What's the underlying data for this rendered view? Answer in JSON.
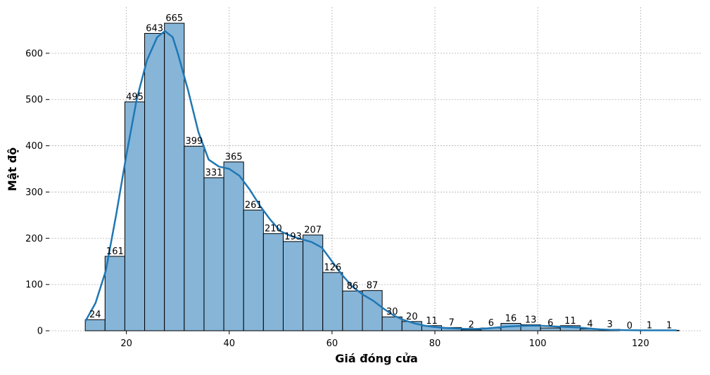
{
  "chart_data": {
    "type": "bar",
    "subtype": "histogram_with_kde",
    "xlabel": "Giá đóng cửa",
    "ylabel": "Mật độ",
    "bin_start": 12.0,
    "bin_width": 3.85,
    "values": [
      24,
      161,
      495,
      643,
      665,
      399,
      331,
      365,
      261,
      210,
      193,
      207,
      126,
      86,
      87,
      30,
      20,
      11,
      7,
      2,
      6,
      16,
      13,
      6,
      11,
      4,
      3,
      0,
      1,
      1
    ],
    "xlim": [
      5,
      132
    ],
    "ylim": [
      0,
      700
    ],
    "xticks": [
      20,
      40,
      60,
      80,
      100,
      120
    ],
    "yticks": [
      0,
      100,
      200,
      300,
      400,
      500,
      600
    ],
    "kde": {
      "x": [
        12,
        14,
        16,
        18,
        20,
        22,
        24,
        26,
        27.5,
        29,
        30,
        31,
        32,
        34,
        36,
        38,
        40,
        42,
        44,
        46,
        48,
        50,
        52,
        54,
        56,
        58,
        60,
        62,
        64,
        66,
        68,
        70,
        72,
        74,
        76,
        78,
        80,
        82,
        84,
        86,
        88,
        90,
        92,
        94,
        96,
        98,
        100,
        102,
        104,
        106,
        108,
        110,
        112,
        114,
        116,
        120,
        124,
        127
      ],
      "y": [
        20,
        60,
        130,
        250,
        380,
        500,
        585,
        635,
        648,
        635,
        600,
        560,
        520,
        430,
        370,
        355,
        350,
        335,
        305,
        270,
        240,
        215,
        205,
        198,
        192,
        180,
        150,
        120,
        95,
        78,
        65,
        48,
        33,
        23,
        16,
        11,
        8,
        6,
        5,
        4,
        4,
        5,
        7,
        9,
        10,
        11,
        11,
        10,
        9,
        8,
        7,
        5,
        3,
        2,
        1.5,
        1,
        1,
        1
      ]
    },
    "bar_color": "#86b5d8",
    "bar_edge_color": "#000000",
    "kde_color": "#1f77b4",
    "grid": true,
    "legend": "none"
  }
}
